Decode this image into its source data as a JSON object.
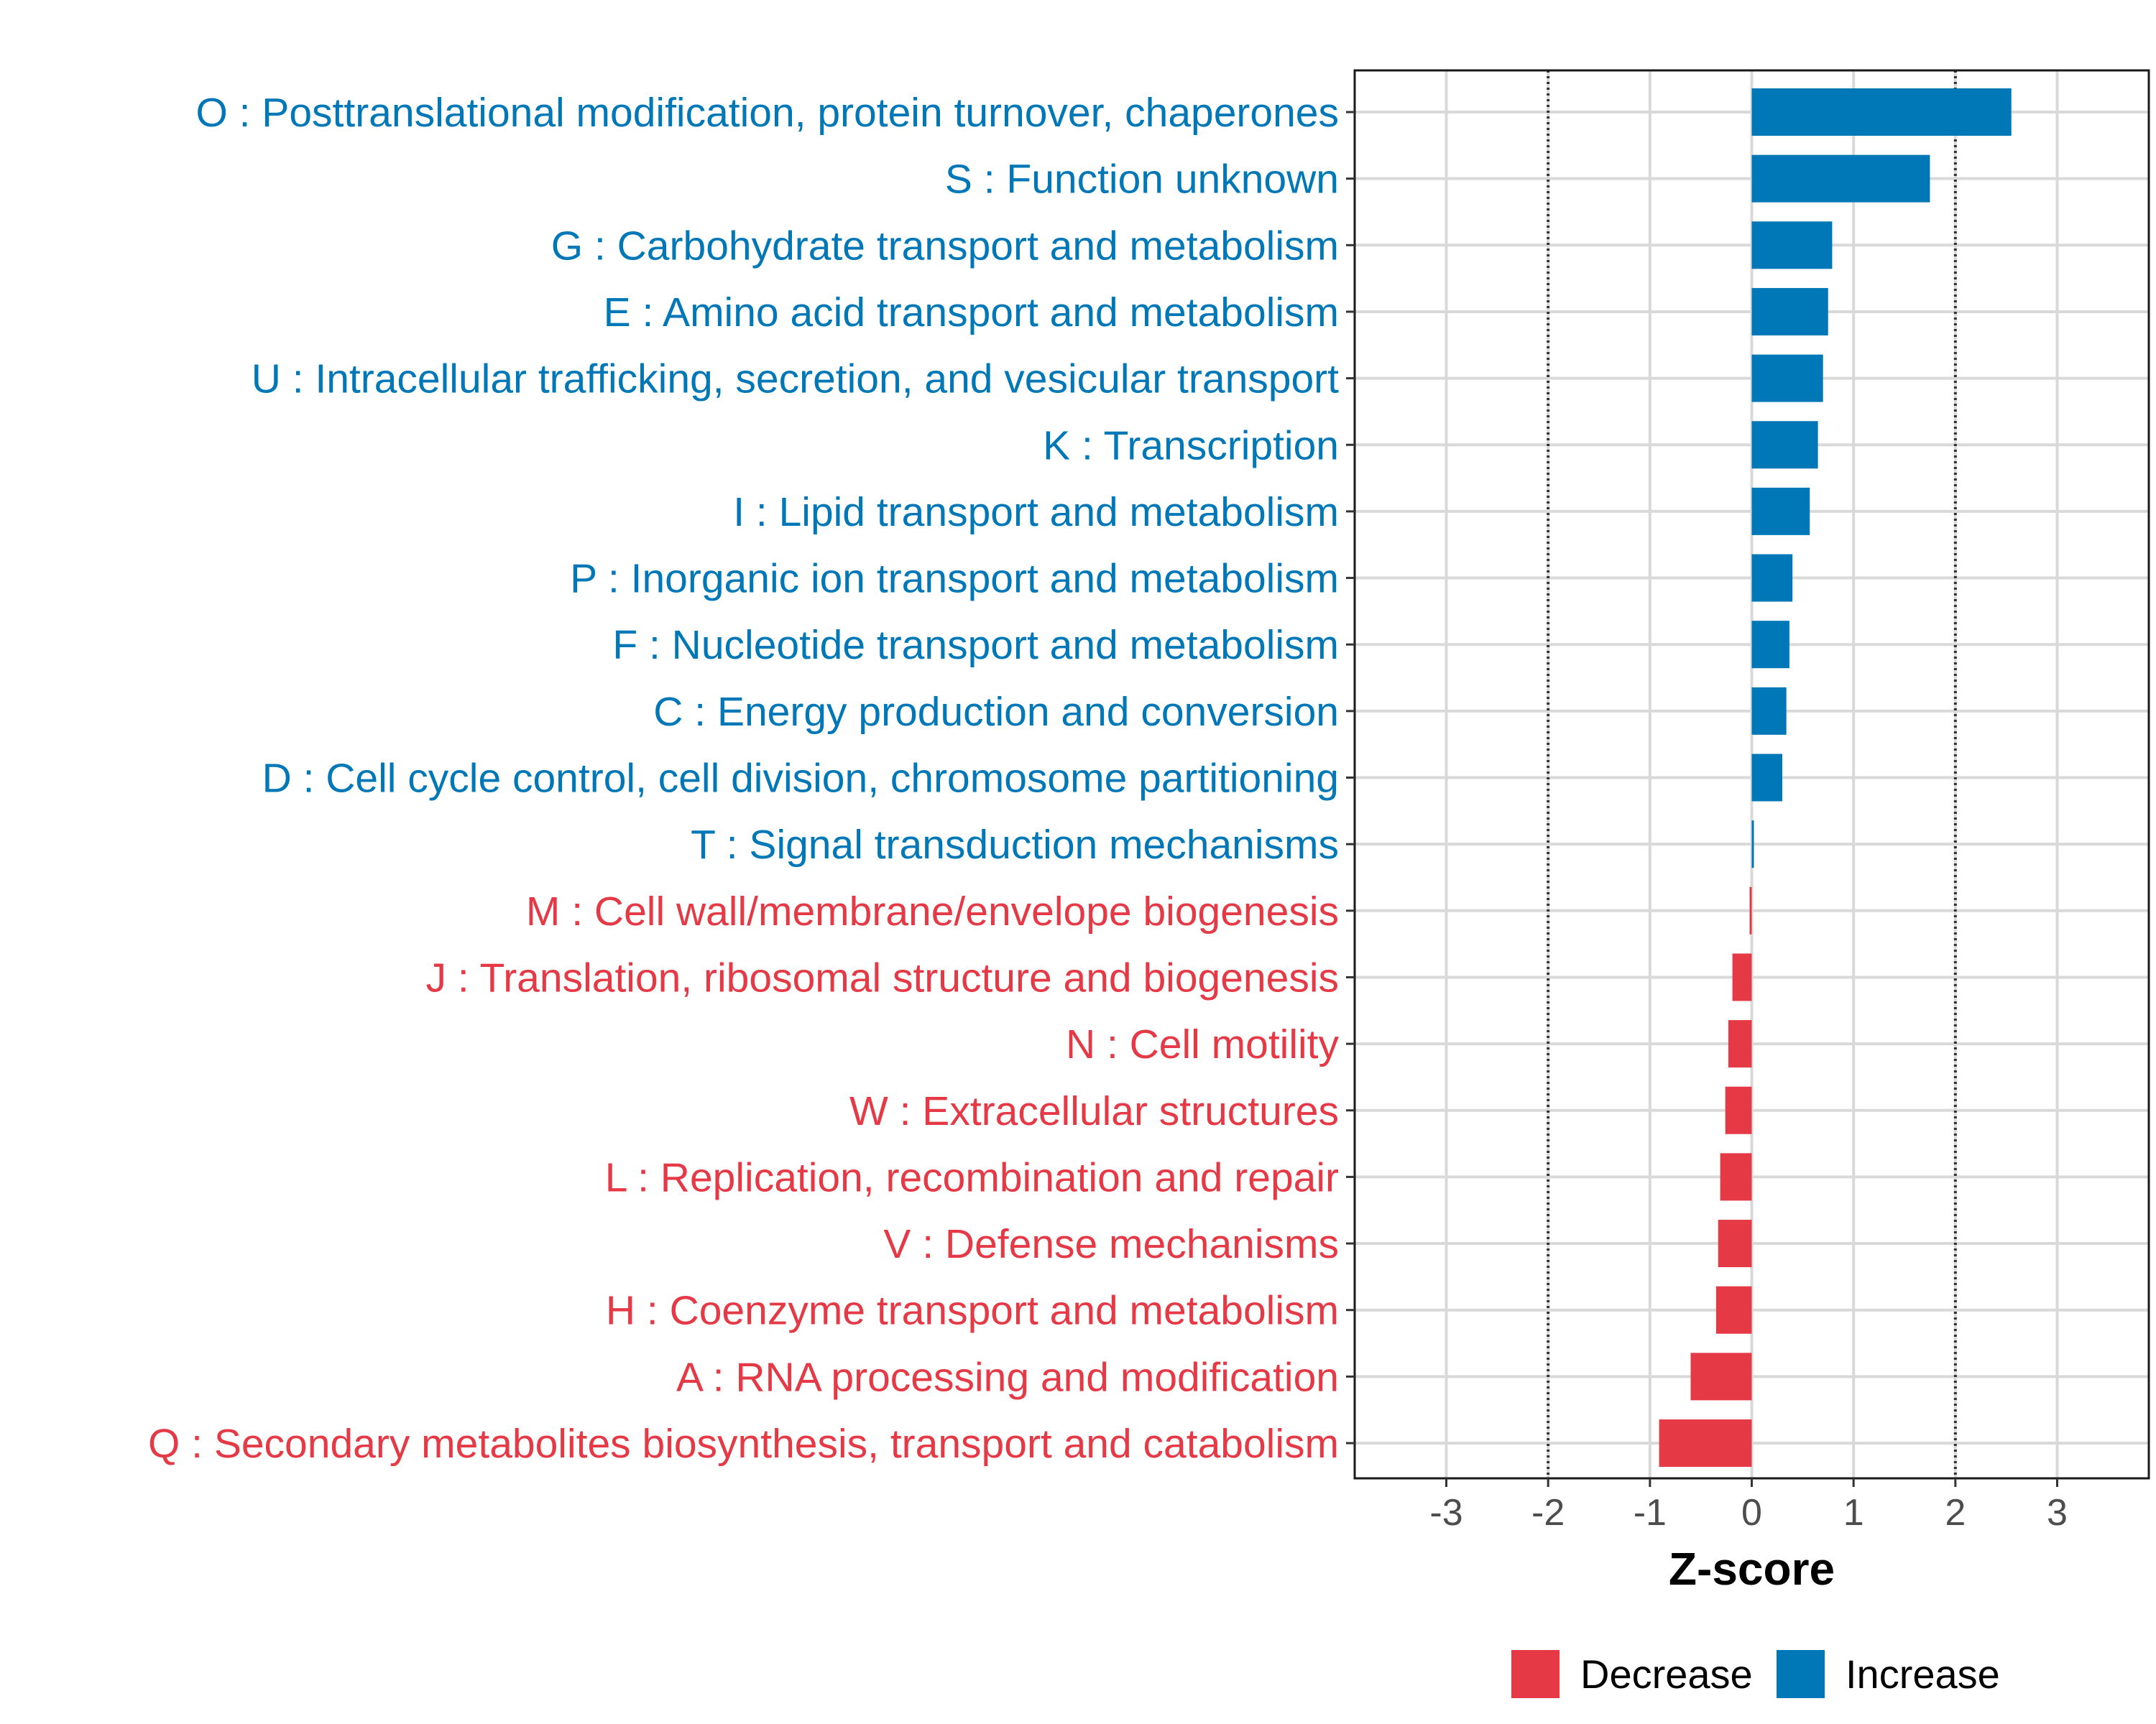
{
  "chart_data": {
    "type": "bar",
    "orientation": "horizontal",
    "title": "",
    "xlabel": "Z-score",
    "ylabel": "",
    "xlim": [
      -3.9,
      3.9
    ],
    "xticks": [
      -3,
      -2,
      -1,
      0,
      1,
      2,
      3
    ],
    "xtick_labels": [
      "-3",
      "-2",
      "-1",
      "0",
      "1",
      "2",
      "3"
    ],
    "reference_lines": [
      -2,
      2
    ],
    "grid": true,
    "categories": [
      "O : Posttranslational modification, protein turnover, chaperones",
      "S : Function unknown",
      "G : Carbohydrate transport and metabolism",
      "E : Amino acid transport and metabolism",
      "U : Intracellular trafficking, secretion, and vesicular transport",
      "K : Transcription",
      "I : Lipid transport and metabolism",
      "P : Inorganic ion transport and metabolism",
      "F : Nucleotide transport and metabolism",
      "C : Energy production and conversion",
      "D : Cell cycle control, cell division, chromosome partitioning",
      "T : Signal transduction mechanisms",
      "M : Cell wall/membrane/envelope biogenesis",
      "J : Translation, ribosomal structure and biogenesis",
      "N : Cell motility",
      "W : Extracellular structures",
      "L : Replication, recombination and repair",
      "V : Defense mechanisms",
      "H : Coenzyme transport and metabolism",
      "A : RNA processing and modification",
      "Q : Secondary metabolites biosynthesis, transport and catabolism"
    ],
    "values": [
      2.55,
      1.75,
      0.79,
      0.75,
      0.7,
      0.65,
      0.57,
      0.4,
      0.37,
      0.34,
      0.3,
      0.01,
      -0.02,
      -0.19,
      -0.23,
      -0.26,
      -0.31,
      -0.33,
      -0.35,
      -0.6,
      -0.91
    ],
    "groups": [
      "Increase",
      "Increase",
      "Increase",
      "Increase",
      "Increase",
      "Increase",
      "Increase",
      "Increase",
      "Increase",
      "Increase",
      "Increase",
      "Increase",
      "Decrease",
      "Decrease",
      "Decrease",
      "Decrease",
      "Decrease",
      "Decrease",
      "Decrease",
      "Decrease",
      "Decrease"
    ],
    "legend": {
      "position": "bottom",
      "entries": [
        {
          "label": "Decrease",
          "color": "#e63946"
        },
        {
          "label": "Increase",
          "color": "#0077b6"
        }
      ]
    },
    "colors": {
      "Increase": "#0077b6",
      "Decrease": "#e63946"
    }
  }
}
